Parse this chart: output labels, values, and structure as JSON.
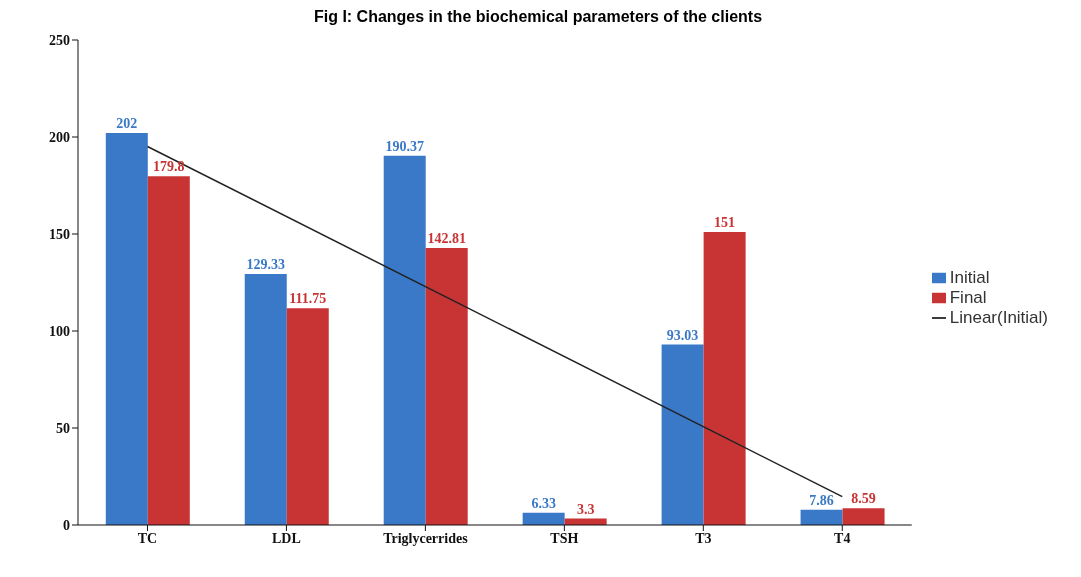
{
  "chart_data": {
    "type": "bar",
    "title": "Fig I: Changes in the biochemical parameters of the clients",
    "categories": [
      "TC",
      "LDL",
      "Triglycerrides",
      "TSH",
      "T3",
      "T4"
    ],
    "series": [
      {
        "name": "Initial",
        "color": "#3a78c8",
        "values": [
          202,
          129.33,
          190.37,
          6.33,
          93.03,
          7.86
        ],
        "value_labels": [
          "202",
          "129.33",
          "190.37",
          "6.33",
          "93.03",
          "7.86"
        ]
      },
      {
        "name": "Final",
        "color": "#c83434",
        "values": [
          179.8,
          111.75,
          142.81,
          3.3,
          151,
          8.59
        ],
        "value_labels": [
          "179.8",
          "111.75",
          "142.81",
          "3.3",
          "151",
          "8.59"
        ]
      },
      {
        "name": "Linear(Initial)",
        "type": "line",
        "color": "#222222",
        "x": [
          "TC",
          "T4"
        ],
        "values": [
          195.1,
          14.6
        ]
      }
    ],
    "ylim": [
      0,
      250
    ],
    "yticks": [
      0,
      50,
      100,
      150,
      200,
      250
    ],
    "legend": "right",
    "marker": "none"
  }
}
